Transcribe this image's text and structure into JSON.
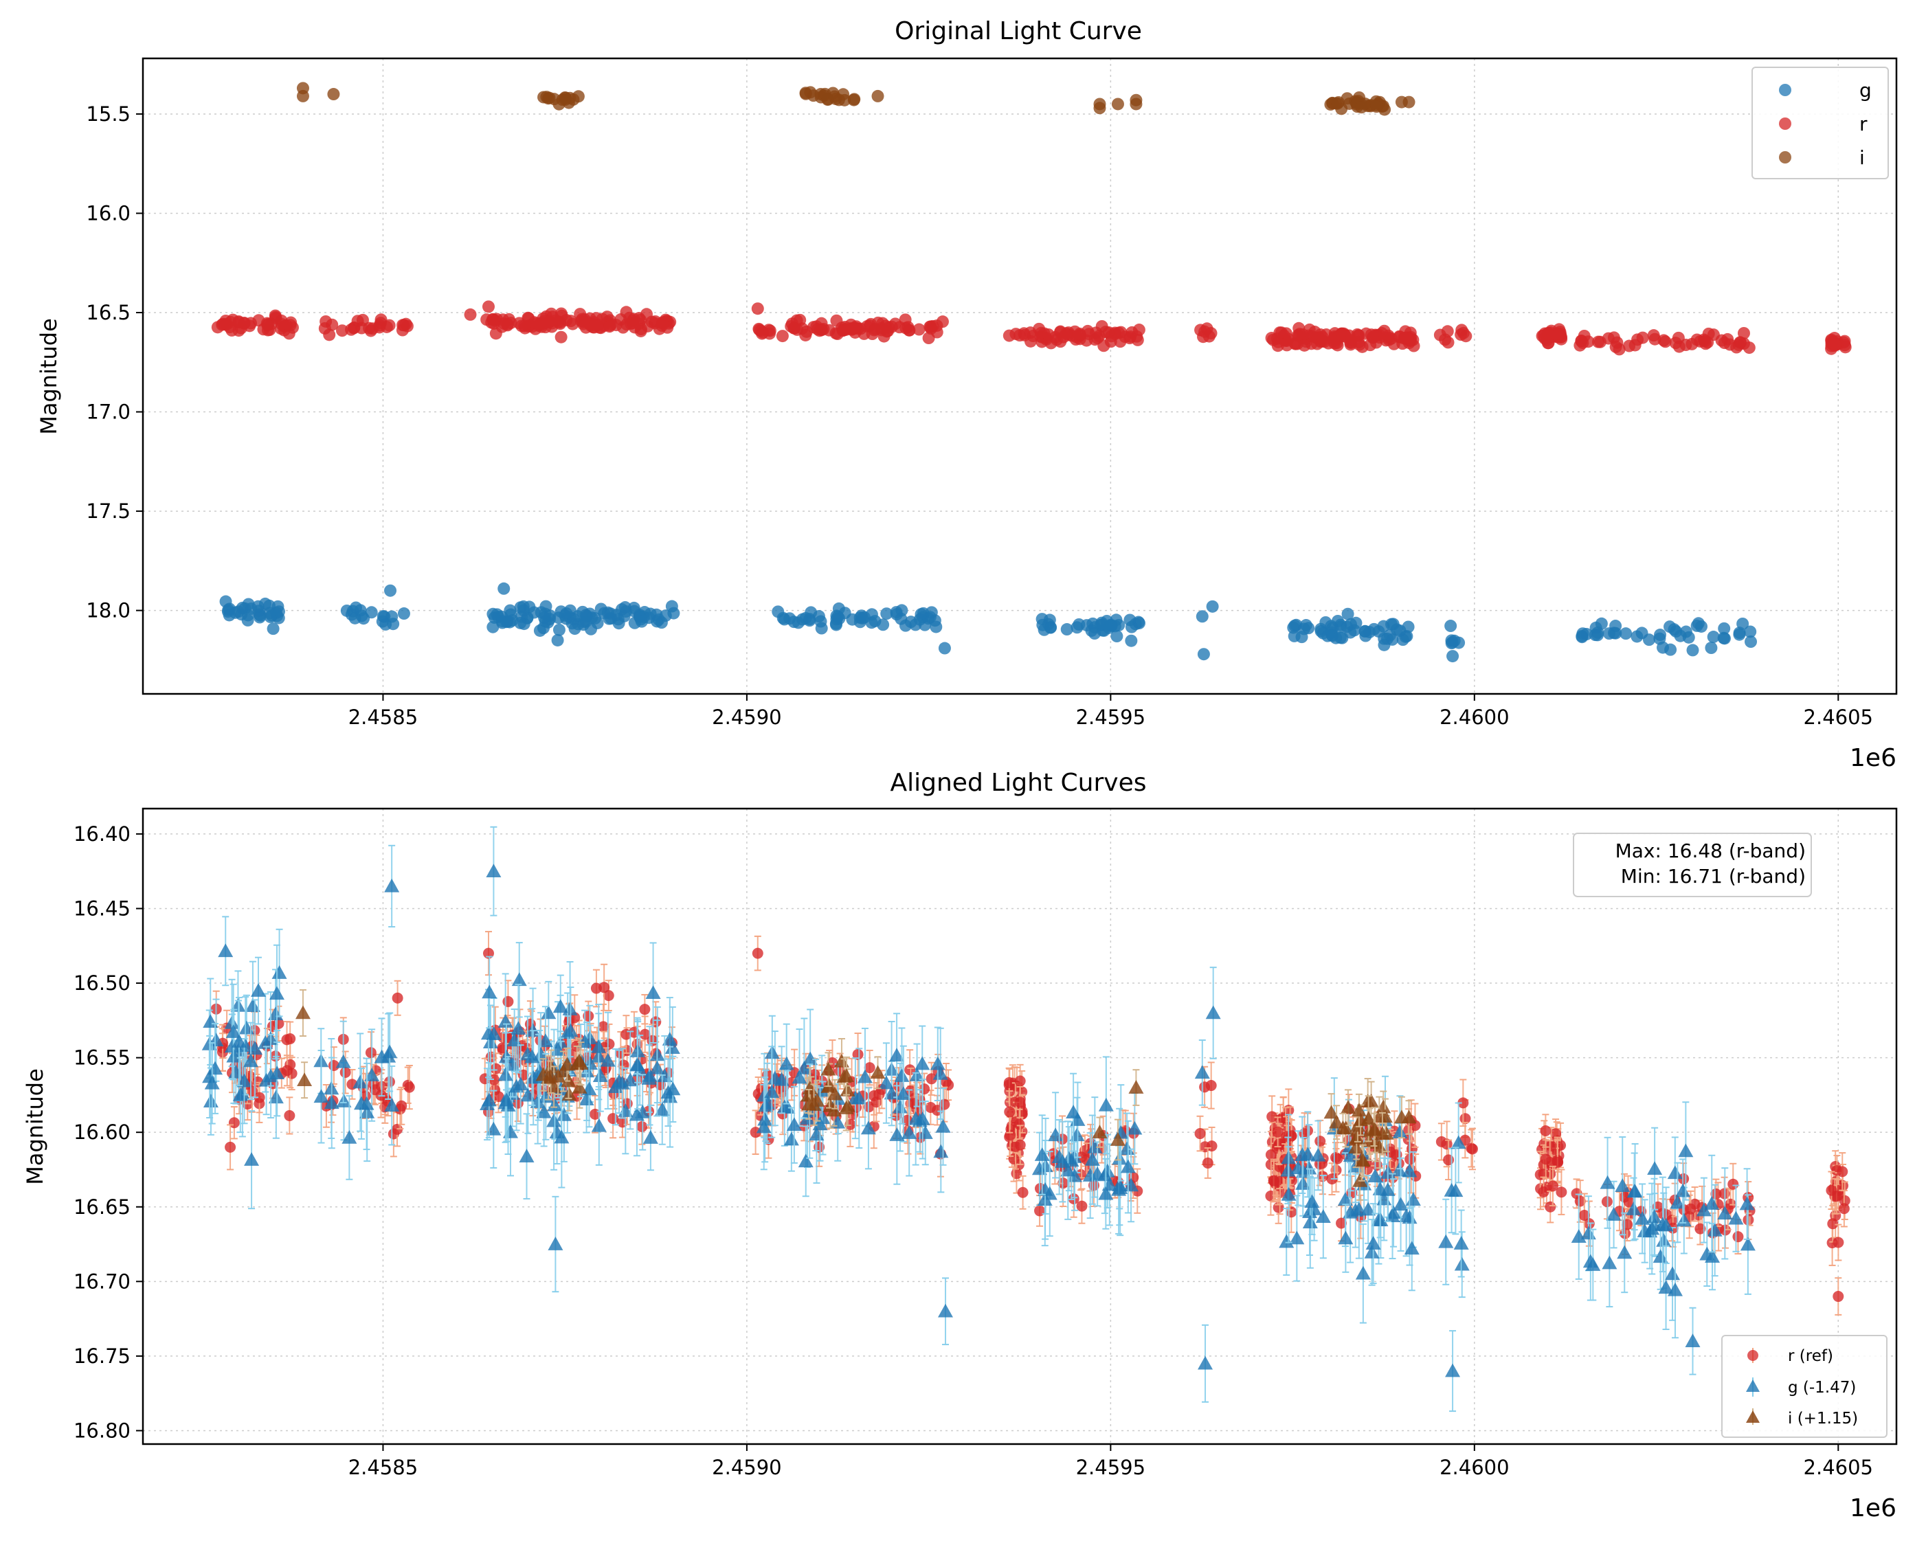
{
  "colors": {
    "g": "#1f77b4",
    "r": "#d62728",
    "i": "#8b4513",
    "r_err": "#f4a582",
    "g_err": "#87ceeb",
    "i_err": "#d2b48c",
    "grid": "#cccccc"
  },
  "chart_data": [
    {
      "type": "scatter",
      "title": "Original Light Curve",
      "xlabel": "",
      "ylabel": "Magnitude",
      "x_offset_label": "1e6",
      "xlim": [
        2458170,
        2460580
      ],
      "ylim": [
        18.42,
        15.22
      ],
      "y_inverted": true,
      "grid": true,
      "xticks": [
        2458500,
        2459000,
        2459500,
        2460000,
        2460500
      ],
      "xtick_labels": [
        "2.4585",
        "2.4590",
        "2.4595",
        "2.4600",
        "2.4605"
      ],
      "yticks": [
        15.5,
        16.0,
        16.5,
        17.0,
        17.5,
        18.0
      ],
      "ytick_labels": [
        "15.5",
        "16.0",
        "16.5",
        "17.0",
        "17.5",
        "18.0"
      ],
      "legend_position": "top-right",
      "legend": [
        {
          "key": "g",
          "label": "g",
          "marker": "circle"
        },
        {
          "key": "r",
          "label": "r",
          "marker": "circle"
        },
        {
          "key": "i",
          "label": "i",
          "marker": "circle"
        }
      ],
      "series": [
        {
          "name": "g",
          "marker": "circle",
          "clusters": [
            {
              "x": [
                2458280,
                2458360
              ],
              "y": 18.01,
              "spread": 0.05,
              "n": 30
            },
            {
              "x": [
                2458440,
                2458530
              ],
              "y": 18.03,
              "spread": 0.05,
              "n": 16
            },
            {
              "x": [
                2458650,
                2458900
              ],
              "y": 18.03,
              "spread": 0.05,
              "n": 90
            },
            {
              "x": [
                2459040,
                2459270
              ],
              "y": 18.04,
              "spread": 0.05,
              "n": 50
            },
            {
              "x": [
                2459400,
                2459540
              ],
              "y": 18.08,
              "spread": 0.05,
              "n": 35
            },
            {
              "x": [
                2459740,
                2459910
              ],
              "y": 18.1,
              "spread": 0.06,
              "n": 50
            },
            {
              "x": [
                2459960,
                2459990
              ],
              "y": 18.15,
              "spread": 0.05,
              "n": 6
            },
            {
              "x": [
                2460140,
                2460380
              ],
              "y": 18.12,
              "spread": 0.05,
              "n": 40
            }
          ],
          "points": [
            {
              "x": 2458510,
              "y": 17.9
            },
            {
              "x": 2458666,
              "y": 17.89
            },
            {
              "x": 2458740,
              "y": 18.15
            },
            {
              "x": 2459272,
              "y": 18.19
            },
            {
              "x": 2459626,
              "y": 18.03
            },
            {
              "x": 2459628,
              "y": 18.22
            },
            {
              "x": 2459640,
              "y": 17.98
            },
            {
              "x": 2459970,
              "y": 18.23
            },
            {
              "x": 2460300,
              "y": 18.2
            }
          ]
        },
        {
          "name": "r",
          "marker": "circle",
          "clusters": [
            {
              "x": [
                2458270,
                2458380
              ],
              "y": 16.56,
              "spread": 0.035,
              "n": 40
            },
            {
              "x": [
                2458420,
                2458540
              ],
              "y": 16.56,
              "spread": 0.035,
              "n": 25
            },
            {
              "x": [
                2458640,
                2458900
              ],
              "y": 16.55,
              "spread": 0.04,
              "n": 110
            },
            {
              "x": [
                2459010,
                2459280
              ],
              "y": 16.58,
              "spread": 0.03,
              "n": 80
            },
            {
              "x": [
                2459360,
                2459540
              ],
              "y": 16.61,
              "spread": 0.035,
              "n": 60
            },
            {
              "x": [
                2459620,
                2459640
              ],
              "y": 16.6,
              "spread": 0.04,
              "n": 6
            },
            {
              "x": [
                2459720,
                2459920
              ],
              "y": 16.63,
              "spread": 0.035,
              "n": 110
            },
            {
              "x": [
                2459950,
                2460000
              ],
              "y": 16.62,
              "spread": 0.035,
              "n": 8
            },
            {
              "x": [
                2460090,
                2460120
              ],
              "y": 16.62,
              "spread": 0.04,
              "n": 25
            },
            {
              "x": [
                2460140,
                2460380
              ],
              "y": 16.64,
              "spread": 0.03,
              "n": 45
            },
            {
              "x": [
                2460490,
                2460510
              ],
              "y": 16.65,
              "spread": 0.04,
              "n": 18
            }
          ],
          "points": [
            {
              "x": 2458620,
              "y": 16.51
            },
            {
              "x": 2458645,
              "y": 16.47
            },
            {
              "x": 2459015,
              "y": 16.48
            }
          ]
        },
        {
          "name": "i",
          "marker": "circle",
          "clusters": [
            {
              "x": [
                2458720,
                2458780
              ],
              "y": 15.42,
              "spread": 0.02,
              "n": 14
            },
            {
              "x": [
                2459080,
                2459150
              ],
              "y": 15.41,
              "spread": 0.02,
              "n": 18
            },
            {
              "x": [
                2459800,
                2459880
              ],
              "y": 15.45,
              "spread": 0.025,
              "n": 30
            }
          ],
          "points": [
            {
              "x": 2458390,
              "y": 15.37
            },
            {
              "x": 2458390,
              "y": 15.41
            },
            {
              "x": 2458432,
              "y": 15.4
            },
            {
              "x": 2459180,
              "y": 15.41
            },
            {
              "x": 2459485,
              "y": 15.47
            },
            {
              "x": 2459485,
              "y": 15.45
            },
            {
              "x": 2459510,
              "y": 15.45
            },
            {
              "x": 2459535,
              "y": 15.43
            },
            {
              "x": 2459535,
              "y": 15.45
            },
            {
              "x": 2459900,
              "y": 15.44
            },
            {
              "x": 2459910,
              "y": 15.44
            }
          ]
        }
      ]
    },
    {
      "type": "scatter",
      "title": "Aligned Light Curves",
      "xlabel": "",
      "ylabel": "Magnitude",
      "x_offset_label": "1e6",
      "xlim": [
        2458170,
        2460580
      ],
      "ylim": [
        16.809,
        16.383
      ],
      "y_inverted": true,
      "grid": true,
      "xticks": [
        2458500,
        2459000,
        2459500,
        2460000,
        2460500
      ],
      "xtick_labels": [
        "2.4585",
        "2.4590",
        "2.4595",
        "2.4600",
        "2.4605"
      ],
      "yticks": [
        16.4,
        16.45,
        16.5,
        16.55,
        16.6,
        16.65,
        16.7,
        16.75,
        16.8
      ],
      "ytick_labels": [
        "16.40",
        "16.45",
        "16.50",
        "16.55",
        "16.60",
        "16.65",
        "16.70",
        "16.75",
        "16.80"
      ],
      "annotation": {
        "line1": "Max: 16.48 (r-band)",
        "line2": "Min: 16.71 (r-band)"
      },
      "legend_position": "bottom-right",
      "legend": [
        {
          "key": "r",
          "label": "r (ref)",
          "marker": "circle"
        },
        {
          "key": "g",
          "label": "g (-1.47)",
          "marker": "triangle"
        },
        {
          "key": "i",
          "label": "i (+1.15)",
          "marker": "triangle"
        }
      ],
      "series": [
        {
          "name": "r (ref)",
          "marker": "circle",
          "error": 0.012,
          "clusters": [
            {
              "x": [
                2458270,
                2458380
              ],
              "y": 16.56,
              "spread": 0.03,
              "n": 40
            },
            {
              "x": [
                2458420,
                2458540
              ],
              "y": 16.57,
              "spread": 0.03,
              "n": 25
            },
            {
              "x": [
                2458640,
                2458900
              ],
              "y": 16.55,
              "spread": 0.035,
              "n": 100
            },
            {
              "x": [
                2459010,
                2459280
              ],
              "y": 16.58,
              "spread": 0.025,
              "n": 80
            },
            {
              "x": [
                2459360,
                2459380
              ],
              "y": 16.59,
              "spread": 0.035,
              "n": 40
            },
            {
              "x": [
                2459400,
                2459540
              ],
              "y": 16.62,
              "spread": 0.025,
              "n": 30
            },
            {
              "x": [
                2459620,
                2459640
              ],
              "y": 16.6,
              "spread": 0.035,
              "n": 6
            },
            {
              "x": [
                2459720,
                2459750
              ],
              "y": 16.62,
              "spread": 0.035,
              "n": 60
            },
            {
              "x": [
                2459760,
                2459920
              ],
              "y": 16.62,
              "spread": 0.03,
              "n": 50
            },
            {
              "x": [
                2459950,
                2460000
              ],
              "y": 16.61,
              "spread": 0.02,
              "n": 8
            },
            {
              "x": [
                2460090,
                2460120
              ],
              "y": 16.62,
              "spread": 0.025,
              "n": 30
            },
            {
              "x": [
                2460140,
                2460380
              ],
              "y": 16.65,
              "spread": 0.02,
              "n": 40
            },
            {
              "x": [
                2460490,
                2460510
              ],
              "y": 16.64,
              "spread": 0.025,
              "n": 18
            }
          ],
          "points": [
            {
              "x": 2458520,
              "y": 16.51
            },
            {
              "x": 2458645,
              "y": 16.48
            },
            {
              "x": 2459015,
              "y": 16.48
            },
            {
              "x": 2459012,
              "y": 16.6
            },
            {
              "x": 2458290,
              "y": 16.61
            },
            {
              "x": 2460500,
              "y": 16.71
            }
          ]
        },
        {
          "name": "g (-1.47)",
          "marker": "triangle",
          "error": 0.026,
          "clusters": [
            {
              "x": [
                2458260,
                2458360
              ],
              "y": 16.54,
              "spread": 0.04,
              "n": 35
            },
            {
              "x": [
                2458410,
                2458520
              ],
              "y": 16.56,
              "spread": 0.04,
              "n": 16
            },
            {
              "x": [
                2458640,
                2458900
              ],
              "y": 16.56,
              "spread": 0.045,
              "n": 90
            },
            {
              "x": [
                2459020,
                2459270
              ],
              "y": 16.58,
              "spread": 0.035,
              "n": 50
            },
            {
              "x": [
                2459400,
                2459540
              ],
              "y": 16.62,
              "spread": 0.03,
              "n": 35
            },
            {
              "x": [
                2459740,
                2459920
              ],
              "y": 16.64,
              "spread": 0.04,
              "n": 50
            },
            {
              "x": [
                2459960,
                2459990
              ],
              "y": 16.66,
              "spread": 0.04,
              "n": 6
            },
            {
              "x": [
                2460140,
                2460380
              ],
              "y": 16.66,
              "spread": 0.035,
              "n": 40
            }
          ],
          "points": [
            {
              "x": 2458512,
              "y": 16.435
            },
            {
              "x": 2458652,
              "y": 16.425
            },
            {
              "x": 2458737,
              "y": 16.675
            },
            {
              "x": 2459273,
              "y": 16.72
            },
            {
              "x": 2459626,
              "y": 16.56
            },
            {
              "x": 2459630,
              "y": 16.755
            },
            {
              "x": 2459641,
              "y": 16.52
            },
            {
              "x": 2459970,
              "y": 16.76
            },
            {
              "x": 2460300,
              "y": 16.74
            }
          ]
        },
        {
          "name": "i (+1.15)",
          "marker": "triangle",
          "error": 0.012,
          "clusters": [
            {
              "x": [
                2458720,
                2458780
              ],
              "y": 16.56,
              "spread": 0.02,
              "n": 14
            },
            {
              "x": [
                2459080,
                2459150
              ],
              "y": 16.575,
              "spread": 0.02,
              "n": 18
            },
            {
              "x": [
                2459800,
                2459880
              ],
              "y": 16.6,
              "spread": 0.025,
              "n": 30
            }
          ],
          "points": [
            {
              "x": 2458390,
              "y": 16.52
            },
            {
              "x": 2458392,
              "y": 16.565
            },
            {
              "x": 2459180,
              "y": 16.56
            },
            {
              "x": 2459485,
              "y": 16.6
            },
            {
              "x": 2459510,
              "y": 16.605
            },
            {
              "x": 2459535,
              "y": 16.57
            },
            {
              "x": 2459900,
              "y": 16.59
            },
            {
              "x": 2459910,
              "y": 16.59
            }
          ]
        }
      ]
    }
  ]
}
